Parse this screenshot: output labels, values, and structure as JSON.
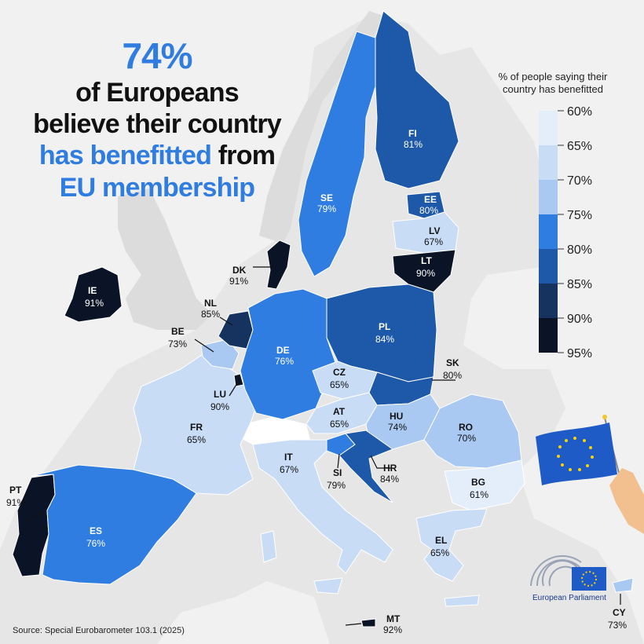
{
  "headline": {
    "percent": "74%",
    "line1": "of Europeans",
    "line2": "believe their country",
    "line3_blue": "has benefitted",
    "line3_dark": " from",
    "line4": "EU membership"
  },
  "legend": {
    "title_line1": "% of people saying their",
    "title_line2": "country has benefitted",
    "items": [
      {
        "label": "60%",
        "color": "#e4eefb"
      },
      {
        "label": "65%",
        "color": "#c9dcf6"
      },
      {
        "label": "70%",
        "color": "#a9c9f2"
      },
      {
        "label": "75%",
        "color": "#2f7de1"
      },
      {
        "label": "80%",
        "color": "#1e58a9"
      },
      {
        "label": "85%",
        "color": "#15335e"
      },
      {
        "label": "90%",
        "color": "#0b1426"
      }
    ],
    "last_label": "95%"
  },
  "countries": [
    {
      "code": "PT",
      "value": "91%",
      "color": "#0b1426"
    },
    {
      "code": "ES",
      "value": "76%",
      "color": "#2f7de1"
    },
    {
      "code": "FR",
      "value": "65%",
      "color": "#c9dcf6"
    },
    {
      "code": "IE",
      "value": "91%",
      "color": "#0b1426"
    },
    {
      "code": "BE",
      "value": "73%",
      "color": "#a9c9f2"
    },
    {
      "code": "NL",
      "value": "85%",
      "color": "#15335e"
    },
    {
      "code": "LU",
      "value": "90%",
      "color": "#0b1426"
    },
    {
      "code": "DE",
      "value": "76%",
      "color": "#2f7de1"
    },
    {
      "code": "DK",
      "value": "91%",
      "color": "#0b1426"
    },
    {
      "code": "SE",
      "value": "79%",
      "color": "#2f7de1"
    },
    {
      "code": "FI",
      "value": "81%",
      "color": "#1e58a9"
    },
    {
      "code": "EE",
      "value": "80%",
      "color": "#1e58a9"
    },
    {
      "code": "LV",
      "value": "67%",
      "color": "#c9dcf6"
    },
    {
      "code": "LT",
      "value": "90%",
      "color": "#0b1426"
    },
    {
      "code": "PL",
      "value": "84%",
      "color": "#1e58a9"
    },
    {
      "code": "CZ",
      "value": "65%",
      "color": "#c9dcf6"
    },
    {
      "code": "SK",
      "value": "80%",
      "color": "#1e58a9"
    },
    {
      "code": "AT",
      "value": "65%",
      "color": "#c9dcf6"
    },
    {
      "code": "HU",
      "value": "74%",
      "color": "#a9c9f2"
    },
    {
      "code": "RO",
      "value": "70%",
      "color": "#a9c9f2"
    },
    {
      "code": "SI",
      "value": "79%",
      "color": "#2f7de1"
    },
    {
      "code": "HR",
      "value": "84%",
      "color": "#1e58a9"
    },
    {
      "code": "IT",
      "value": "67%",
      "color": "#c9dcf6"
    },
    {
      "code": "BG",
      "value": "61%",
      "color": "#e4eefb"
    },
    {
      "code": "EL",
      "value": "65%",
      "color": "#c9dcf6"
    },
    {
      "code": "CY",
      "value": "73%",
      "color": "#a9c9f2"
    },
    {
      "code": "MT",
      "value": "92%",
      "color": "#0b1426"
    }
  ],
  "source": "Source: Special Eurobarometer 103.1 (2025)",
  "logo_text": "European Parliament"
}
